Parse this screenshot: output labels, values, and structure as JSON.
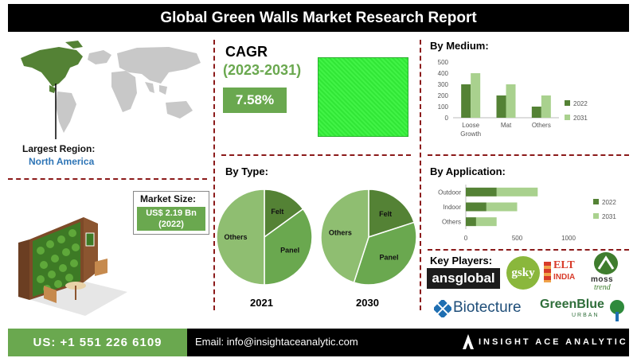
{
  "header": {
    "title": "Global Green Walls Market Research Report"
  },
  "region": {
    "label": "Largest Region:",
    "value": "North America"
  },
  "market_size": {
    "label": "Market Size:",
    "value_line1": "US$ 2.19 Bn",
    "value_line2": "(2022)"
  },
  "cagr": {
    "title": "CAGR",
    "period": "(2023-2031)",
    "value": "7.58%"
  },
  "colors": {
    "dark_green": "#548235",
    "light_green": "#a9d18e",
    "mid_green": "#6aa84f",
    "pie_light": "#8fbe71",
    "accent_red": "#8b1a1a"
  },
  "chart_data": [
    {
      "type": "bar",
      "orientation": "vertical",
      "title": "By Medium:",
      "categories": [
        "Loose Growth",
        "Mat",
        "Others"
      ],
      "series": [
        {
          "name": "2022",
          "values": [
            300,
            200,
            100
          ]
        },
        {
          "name": "2031",
          "values": [
            400,
            300,
            200
          ]
        }
      ],
      "ylim": [
        0,
        500
      ],
      "yticks": [
        0,
        100,
        200,
        300,
        400,
        500
      ],
      "legend": "right",
      "grid": false
    },
    {
      "type": "bar",
      "orientation": "horizontal",
      "title": "By Application:",
      "categories": [
        "Outdoor",
        "Indoor",
        "Others"
      ],
      "series": [
        {
          "name": "2022",
          "values": [
            300,
            200,
            100
          ]
        },
        {
          "name": "2031",
          "values": [
            700,
            500,
            300
          ]
        }
      ],
      "xlim": [
        0,
        1000
      ],
      "xticks": [
        0,
        500,
        1000
      ],
      "legend": "right",
      "grid": false
    },
    {
      "type": "pie",
      "title": "By Type:",
      "subtitle": "2021",
      "labels": [
        "Felt",
        "Panel",
        "Others"
      ],
      "values": [
        15,
        35,
        50
      ]
    },
    {
      "type": "pie",
      "subtitle": "2030",
      "labels": [
        "Felt",
        "Panel",
        "Others"
      ],
      "values": [
        20,
        35,
        45
      ]
    }
  ],
  "key_players": {
    "label": "Key Players:",
    "logos": [
      "ansglobal",
      "gsky",
      "ELT",
      "INDIA",
      "moss",
      "trend",
      "Biotecture",
      "GreenBlue",
      "URBAN"
    ]
  },
  "footer": {
    "phone": "US: +1 551 226 6109",
    "email": "Email: info@insightaceanalytic.com",
    "brand": "INSIGHT ACE ANALYTIC"
  }
}
